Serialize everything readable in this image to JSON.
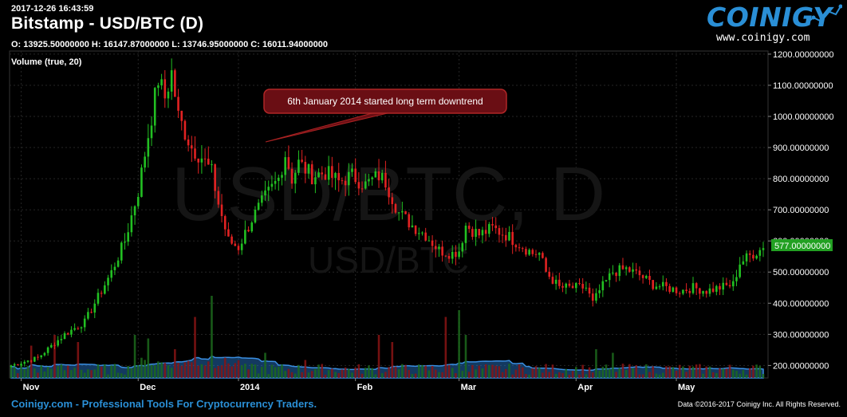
{
  "header": {
    "timestamp": "2017-12-26 16:43:59",
    "title": "Bitstamp - USD/BTC (D)",
    "ohlc": "O: 13925.50000000 H: 16147.87000000 L: 13746.95000000 C: 16011.94000000",
    "volume_label": "Volume (true, 20)"
  },
  "logo": {
    "word": "COINIGY",
    "url": "www.coinigy.com"
  },
  "watermark": {
    "big": "USD/BTC, D",
    "small": "USD/BTC"
  },
  "annotation": {
    "text": "6th January 2014 started long term downtrend"
  },
  "footer": {
    "left": "Coinigy.com - Professional Tools For Cryptocurrency Traders.",
    "right": "Data ©2016-2017 Coinigy Inc. All Rights Reserved."
  },
  "colors": {
    "up": "#22c022",
    "down": "#e22222",
    "volume_ma": "#2a7fd4",
    "price_tag": "#22a022",
    "annotation_bg": "#6a0e14"
  },
  "chart_data": {
    "type": "candlestick",
    "x_ticks": [
      "Nov",
      "Dec",
      "2014",
      "Feb",
      "Mar",
      "Apr",
      "May"
    ],
    "y_ticks": [
      "200.00000000",
      "300.00000000",
      "400.00000000",
      "500.00000000",
      "600.00000000",
      "700.00000000",
      "800.00000000",
      "900.00000000",
      "1000.00000000",
      "1100.00000000",
      "1200.00000000"
    ],
    "ylim": [
      160,
      1210
    ],
    "last_price": "577.00000000",
    "close_anchors": [
      [
        0,
        200
      ],
      [
        8,
        225
      ],
      [
        16,
        300
      ],
      [
        22,
        340
      ],
      [
        26,
        420
      ],
      [
        30,
        500
      ],
      [
        34,
        600
      ],
      [
        38,
        760
      ],
      [
        42,
        1000
      ],
      [
        44,
        1120
      ],
      [
        46,
        1060
      ],
      [
        48,
        1140
      ],
      [
        50,
        1000
      ],
      [
        54,
        900
      ],
      [
        57,
        870
      ],
      [
        60,
        820
      ],
      [
        62,
        720
      ],
      [
        65,
        600
      ],
      [
        68,
        580
      ],
      [
        72,
        670
      ],
      [
        76,
        740
      ],
      [
        80,
        800
      ],
      [
        82,
        880
      ],
      [
        84,
        800
      ],
      [
        86,
        850
      ],
      [
        90,
        810
      ],
      [
        94,
        820
      ],
      [
        98,
        790
      ],
      [
        102,
        810
      ],
      [
        106,
        780
      ],
      [
        110,
        810
      ],
      [
        112,
        790
      ],
      [
        116,
        690
      ],
      [
        120,
        650
      ],
      [
        124,
        620
      ],
      [
        128,
        570
      ],
      [
        132,
        560
      ],
      [
        134,
        570
      ],
      [
        136,
        650
      ],
      [
        140,
        620
      ],
      [
        144,
        640
      ],
      [
        148,
        620
      ],
      [
        152,
        590
      ],
      [
        156,
        560
      ],
      [
        158,
        560
      ],
      [
        160,
        500
      ],
      [
        164,
        450
      ],
      [
        168,
        450
      ],
      [
        172,
        450
      ],
      [
        174,
        400
      ],
      [
        176,
        440
      ],
      [
        180,
        500
      ],
      [
        184,
        510
      ],
      [
        188,
        490
      ],
      [
        192,
        460
      ],
      [
        196,
        450
      ],
      [
        200,
        440
      ],
      [
        204,
        450
      ],
      [
        208,
        440
      ],
      [
        212,
        450
      ],
      [
        216,
        460
      ],
      [
        218,
        530
      ],
      [
        222,
        560
      ],
      [
        225,
        577
      ]
    ],
    "volume_spikes": [
      [
        6,
        45
      ],
      [
        13,
        60
      ],
      [
        20,
        50
      ],
      [
        37,
        60
      ],
      [
        41,
        55
      ],
      [
        49,
        40
      ],
      [
        55,
        85
      ],
      [
        60,
        25
      ],
      [
        76,
        35
      ],
      [
        88,
        25
      ],
      [
        110,
        60
      ],
      [
        114,
        50
      ],
      [
        130,
        85
      ],
      [
        136,
        60
      ],
      [
        175,
        40
      ],
      [
        180,
        35
      ]
    ]
  }
}
